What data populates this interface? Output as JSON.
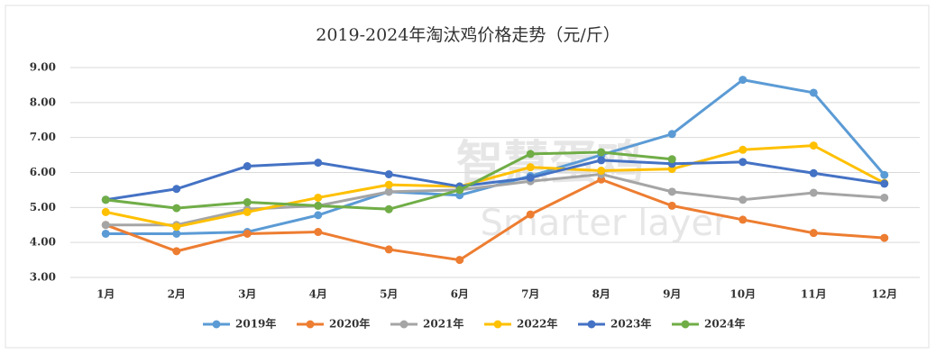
{
  "chart_data": {
    "type": "line",
    "title": "2019-2024年淘汰鸡价格走势（元/斤）",
    "watermark": [
      "智慧蛋鸡",
      "Smarter layer"
    ],
    "categories": [
      "1月",
      "2月",
      "3月",
      "4月",
      "5月",
      "6月",
      "7月",
      "8月",
      "9月",
      "10月",
      "11月",
      "12月"
    ],
    "series": [
      {
        "name": "2019年",
        "color": "#5b9bd5",
        "values": [
          4.25,
          4.25,
          4.3,
          4.78,
          5.45,
          5.35,
          5.9,
          6.5,
          7.1,
          8.65,
          8.28,
          5.93
        ]
      },
      {
        "name": "2020年",
        "color": "#ed7d31",
        "values": [
          4.5,
          3.75,
          4.25,
          4.3,
          3.8,
          3.5,
          4.8,
          5.8,
          5.05,
          4.65,
          4.27,
          4.13
        ]
      },
      {
        "name": "2021年",
        "color": "#a5a5a5",
        "values": [
          4.5,
          4.5,
          4.95,
          5.05,
          5.45,
          5.5,
          5.75,
          5.95,
          5.45,
          5.22,
          5.42,
          5.28
        ]
      },
      {
        "name": "2022年",
        "color": "#ffc000",
        "values": [
          4.87,
          4.45,
          4.87,
          5.28,
          5.65,
          5.6,
          6.15,
          6.05,
          6.1,
          6.65,
          6.77,
          5.7
        ]
      },
      {
        "name": "2023年",
        "color": "#4472c4",
        "values": [
          5.22,
          5.53,
          6.18,
          6.28,
          5.95,
          5.6,
          5.85,
          6.35,
          6.25,
          6.3,
          5.98,
          5.68
        ]
      },
      {
        "name": "2024年",
        "color": "#70ad47",
        "values": [
          5.22,
          4.98,
          5.15,
          5.05,
          4.95,
          5.5,
          6.53,
          6.58,
          6.38,
          null,
          null,
          null
        ]
      }
    ],
    "ylim": [
      3,
      9
    ],
    "yticks": [
      {
        "value": 3,
        "label": "3.00"
      },
      {
        "value": 4,
        "label": "4.00"
      },
      {
        "value": 5,
        "label": "5.00"
      },
      {
        "value": 6,
        "label": "6.00"
      },
      {
        "value": 7,
        "label": "7.00"
      },
      {
        "value": 8,
        "label": "8.00"
      },
      {
        "value": 9,
        "label": "9.00"
      }
    ],
    "grid": true,
    "legend": "bottom"
  }
}
